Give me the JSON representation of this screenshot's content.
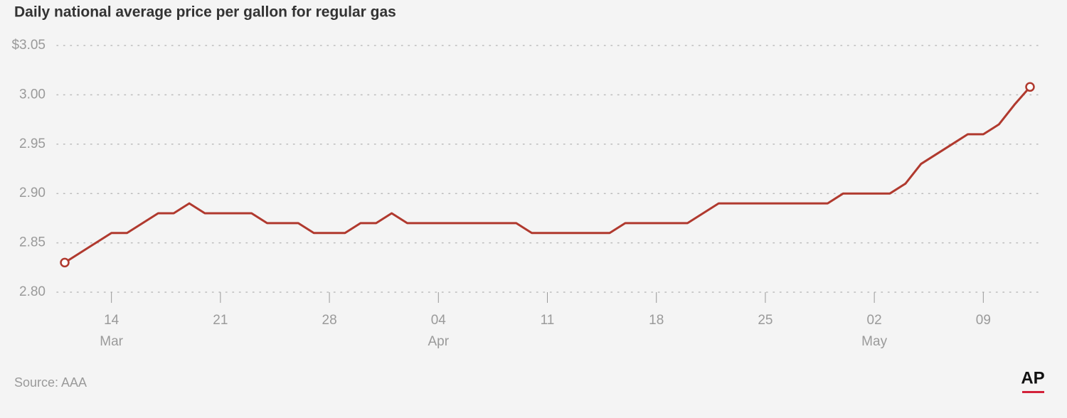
{
  "chart_data": {
    "type": "line",
    "title": "Daily national average price per gallon for regular gas",
    "source": "Source: AAA",
    "logo": "AP",
    "x": [
      "Mar 11",
      "Mar 12",
      "Mar 13",
      "Mar 14",
      "Mar 15",
      "Mar 16",
      "Mar 17",
      "Mar 18",
      "Mar 19",
      "Mar 20",
      "Mar 21",
      "Mar 22",
      "Mar 23",
      "Mar 24",
      "Mar 25",
      "Mar 26",
      "Mar 27",
      "Mar 28",
      "Mar 29",
      "Mar 30",
      "Mar 31",
      "Apr 01",
      "Apr 02",
      "Apr 03",
      "Apr 04",
      "Apr 05",
      "Apr 06",
      "Apr 07",
      "Apr 08",
      "Apr 09",
      "Apr 10",
      "Apr 11",
      "Apr 12",
      "Apr 13",
      "Apr 14",
      "Apr 15",
      "Apr 16",
      "Apr 17",
      "Apr 18",
      "Apr 19",
      "Apr 20",
      "Apr 21",
      "Apr 22",
      "Apr 23",
      "Apr 24",
      "Apr 25",
      "Apr 26",
      "Apr 27",
      "Apr 28",
      "Apr 29",
      "Apr 30",
      "May 01",
      "May 02",
      "May 03",
      "May 04",
      "May 05",
      "May 06",
      "May 07",
      "May 08",
      "May 09",
      "May 10",
      "May 11",
      "May 12"
    ],
    "series": [
      {
        "name": "Regular gas",
        "color": "#b0392e",
        "values": [
          2.83,
          2.84,
          2.85,
          2.86,
          2.86,
          2.87,
          2.88,
          2.88,
          2.89,
          2.88,
          2.88,
          2.88,
          2.88,
          2.87,
          2.87,
          2.87,
          2.86,
          2.86,
          2.86,
          2.87,
          2.87,
          2.88,
          2.87,
          2.87,
          2.87,
          2.87,
          2.87,
          2.87,
          2.87,
          2.87,
          2.86,
          2.86,
          2.86,
          2.86,
          2.86,
          2.86,
          2.87,
          2.87,
          2.87,
          2.87,
          2.87,
          2.88,
          2.89,
          2.89,
          2.89,
          2.89,
          2.89,
          2.89,
          2.89,
          2.89,
          2.9,
          2.9,
          2.9,
          2.9,
          2.91,
          2.93,
          2.94,
          2.95,
          2.96,
          2.96,
          2.97,
          2.99,
          3.008
        ]
      }
    ],
    "xlim": [
      "Mar 11",
      "May 12"
    ],
    "xticks": [
      {
        "value": "Mar 14",
        "label": "14"
      },
      {
        "value": "Mar 21",
        "label": "21"
      },
      {
        "value": "Mar 28",
        "label": "28"
      },
      {
        "value": "Apr 04",
        "label": "04"
      },
      {
        "value": "Apr 11",
        "label": "11"
      },
      {
        "value": "Apr 18",
        "label": "18"
      },
      {
        "value": "Apr 25",
        "label": "25"
      },
      {
        "value": "May 02",
        "label": "02"
      },
      {
        "value": "May 09",
        "label": "09"
      }
    ],
    "xtick_months": [
      {
        "value": "Mar 14",
        "label": "Mar"
      },
      {
        "value": "Apr 04",
        "label": "Apr"
      },
      {
        "value": "May 02",
        "label": "May"
      }
    ],
    "ylim": [
      2.8,
      3.05
    ],
    "yticks": [
      {
        "value": 2.8,
        "label": "2.80"
      },
      2.85,
      {
        "value": 2.9,
        "label": "2.90"
      },
      2.95,
      {
        "value": 3.0,
        "label": "3.00"
      },
      {
        "value": 3.05,
        "label": "$3.05"
      }
    ],
    "grid": true
  }
}
